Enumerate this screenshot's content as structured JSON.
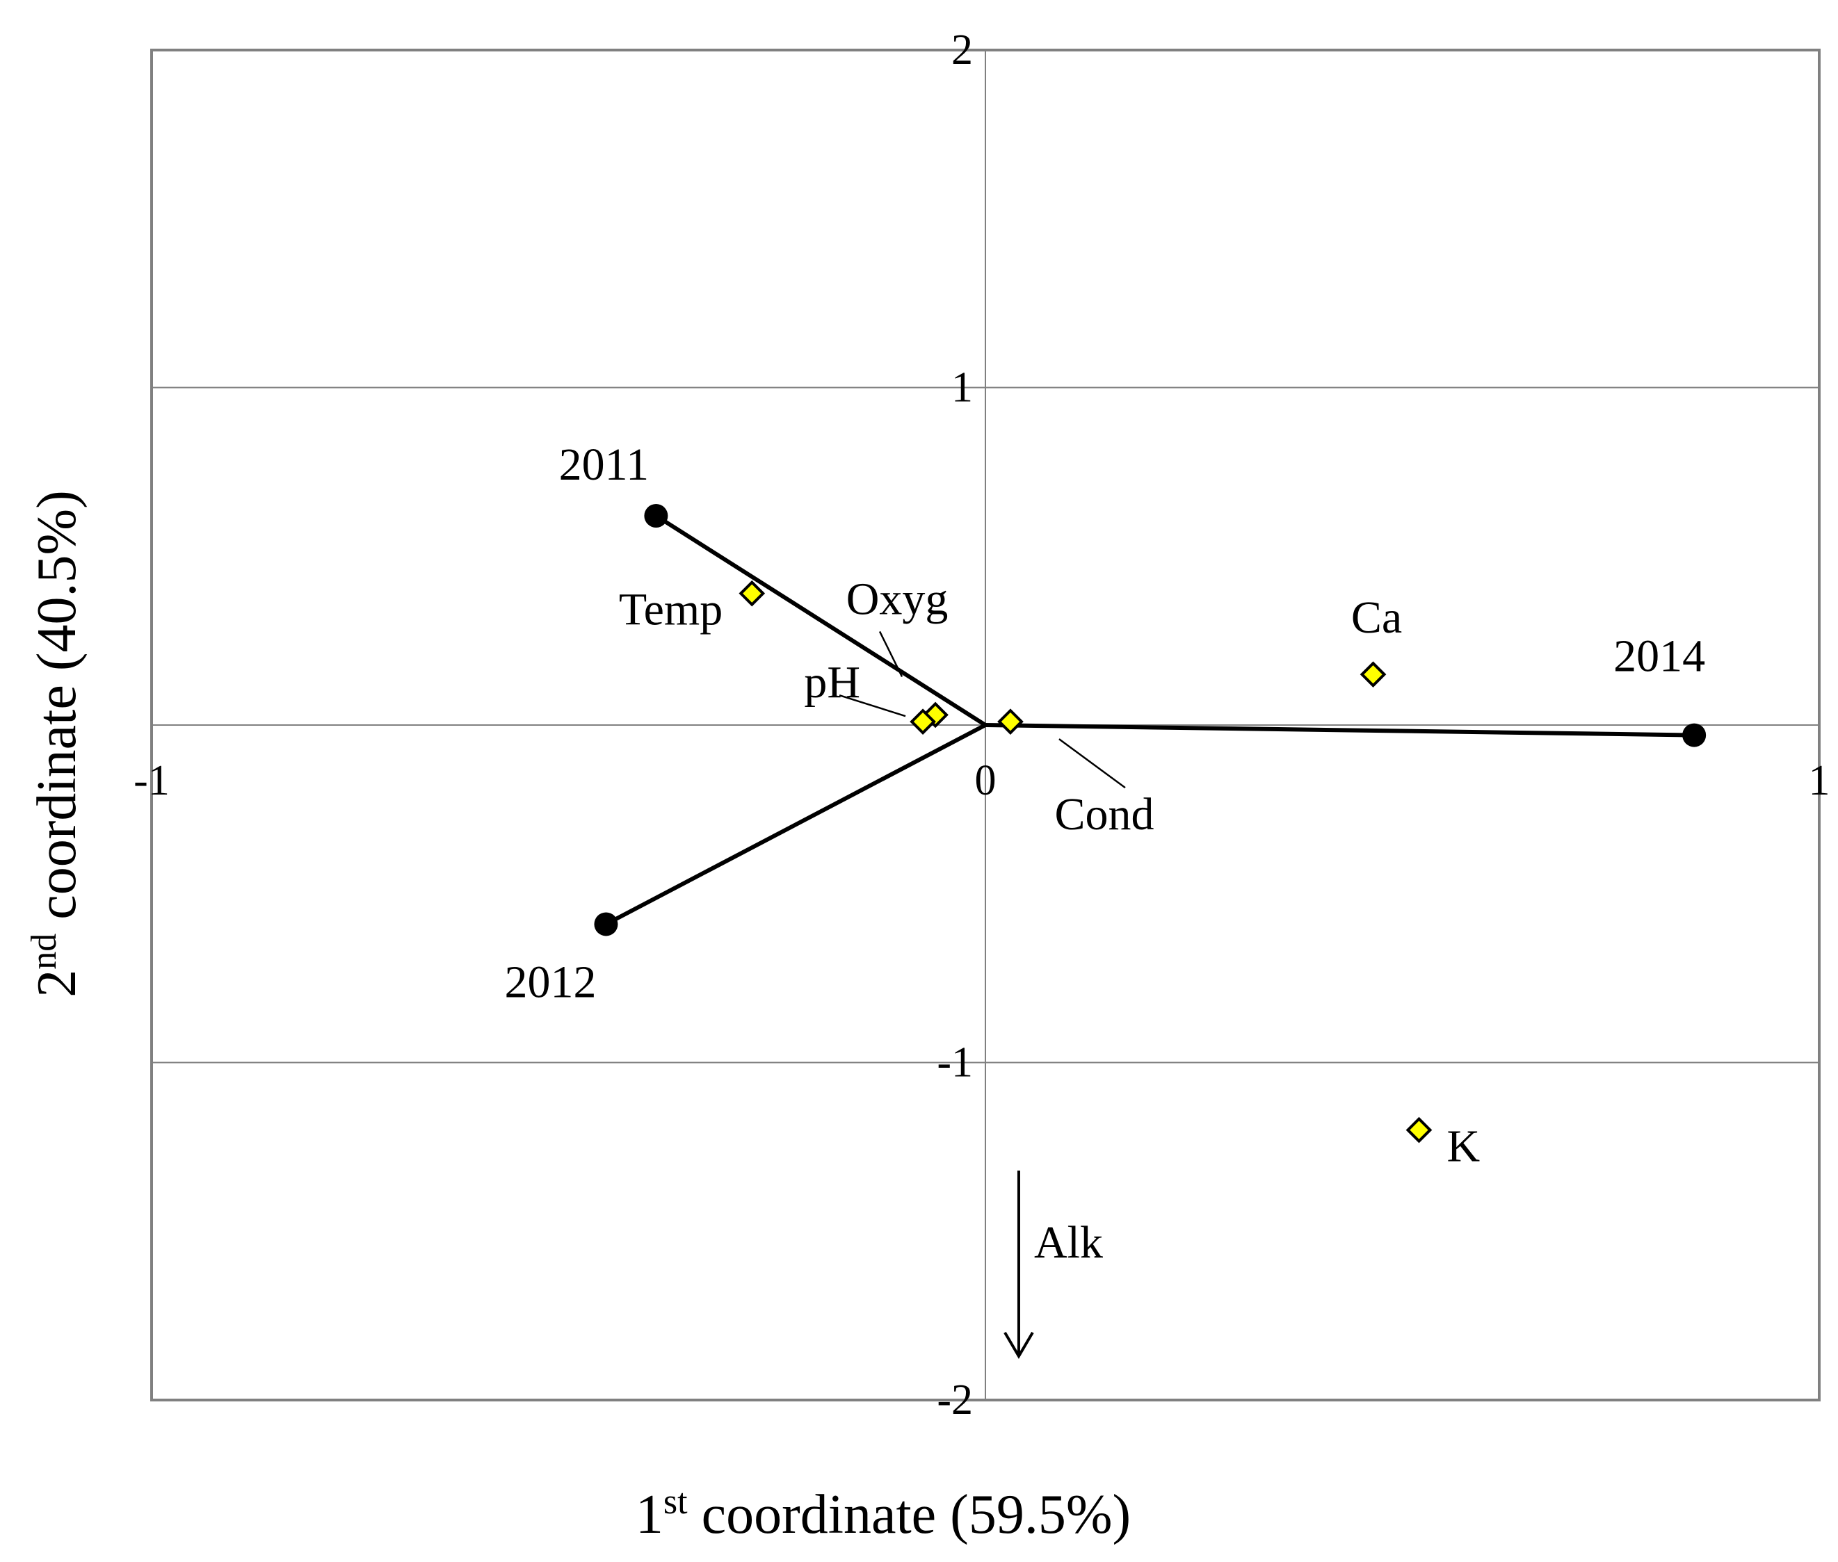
{
  "chart_data": {
    "type": "scatter",
    "title": "",
    "xlabel": {
      "prefix": "1",
      "sup": "st",
      "suffix": " coordinate (59.5%)"
    },
    "ylabel": {
      "prefix": "2",
      "sup": "nd",
      "suffix": " coordinate (40.5%)"
    },
    "xlim": [
      -1,
      1
    ],
    "ylim": [
      -2,
      2
    ],
    "grid": true,
    "x_ticks": [
      {
        "value": -1,
        "label": "-1"
      },
      {
        "value": 0,
        "label": "0"
      },
      {
        "value": 1,
        "label": "1"
      }
    ],
    "y_ticks": [
      {
        "value": 2,
        "label": "2"
      },
      {
        "value": 1,
        "label": "1"
      },
      {
        "value": -1,
        "label": "-1"
      },
      {
        "value": -2,
        "label": "-2"
      }
    ],
    "colors": {
      "year_marker": "#000000",
      "variable_marker_fill": "#ffff00",
      "variable_marker_stroke": "#000000",
      "frame": "#808080",
      "grid": "#808080"
    },
    "series": [
      {
        "name": "",
        "marker": "circle",
        "connect_to_origin": true,
        "points": [
          {
            "label": "2011",
            "x": -0.395,
            "y": 0.62
          },
          {
            "label": "2012",
            "x": -0.455,
            "y": -0.59
          },
          {
            "label": "2014",
            "x": 0.85,
            "y": -0.03
          }
        ]
      },
      {
        "name": "",
        "marker": "diamond",
        "points": [
          {
            "label": "Temp",
            "x": -0.28,
            "y": 0.39
          },
          {
            "label": "Oxyg",
            "x": -0.06,
            "y": 0.03
          },
          {
            "label": "pH",
            "x": -0.075,
            "y": 0.01
          },
          {
            "label": "Cond",
            "x": 0.03,
            "y": 0.01
          },
          {
            "label": "Ca",
            "x": 0.465,
            "y": 0.15
          },
          {
            "label": "K",
            "x": 0.52,
            "y": -1.2
          }
        ]
      }
    ],
    "annotations": [
      {
        "label": "Alk",
        "type": "arrow",
        "from": [
          0.04,
          -1.32
        ],
        "to": [
          0.04,
          -1.87
        ]
      }
    ]
  }
}
